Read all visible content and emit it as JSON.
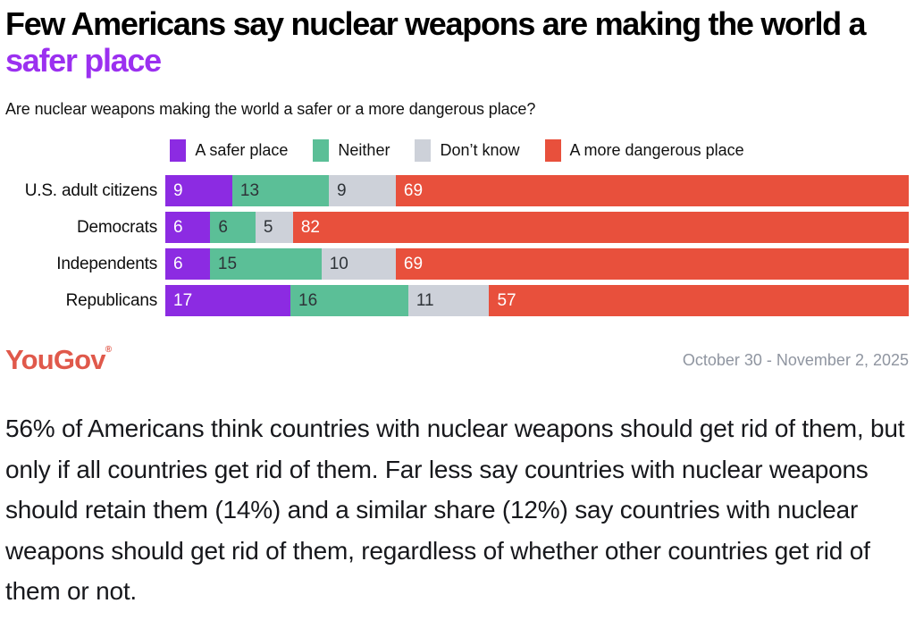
{
  "theme": {
    "accent_purple": "#9B30F0",
    "logo_color": "#E0594B",
    "date_color": "#8F95A0"
  },
  "header": {
    "title_main": "Few Americans say nuclear weapons are making the world a ",
    "title_accent": "safer place",
    "subtitle": "Are nuclear weapons making the world a safer or a more dangerous place?"
  },
  "chart_data": {
    "type": "bar",
    "orientation": "horizontal-stacked",
    "title": "Few Americans say nuclear weapons are making the world a safer place",
    "question": "Are nuclear weapons making the world a safer or a more dangerous place?",
    "value_unit": "percent",
    "legend_position": "top-center",
    "categories": [
      "U.S. adult citizens",
      "Democrats",
      "Independents",
      "Republicans"
    ],
    "series": [
      {
        "name": "A safer place",
        "color": "#8C2BE2",
        "label_color": "#ffffff",
        "values": [
          9,
          6,
          6,
          17
        ]
      },
      {
        "name": "Neither",
        "color": "#5BBF97",
        "label_color": "#2e3338",
        "values": [
          13,
          6,
          15,
          16
        ]
      },
      {
        "name": "Don’t know",
        "color": "#CDD1D9",
        "label_color": "#2e3338",
        "values": [
          9,
          5,
          10,
          11
        ]
      },
      {
        "name": "A more dangerous place",
        "color": "#E8503C",
        "label_color": "#ffffff",
        "values": [
          69,
          82,
          69,
          57
        ]
      }
    ]
  },
  "footer": {
    "logo_text": "YouGov",
    "registered_mark": "®",
    "date_range": "October 30 - November 2, 2025"
  },
  "body_text": "56% of Americans think countries with nuclear weapons should get rid of them, but only if all countries get rid of them. Far less say countries with nuclear weapons should retain them (14%) and a similar share (12%) say countries with nuclear weapons should get rid of them, regardless of whether other countries get rid of them or not."
}
